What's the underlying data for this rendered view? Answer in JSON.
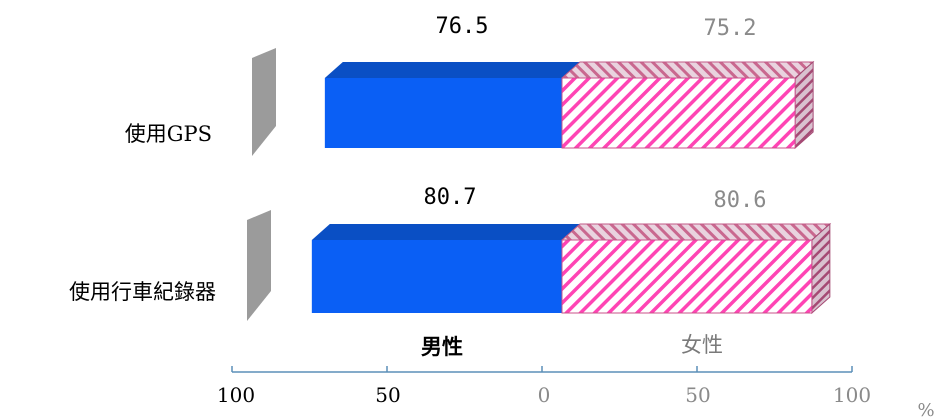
{
  "chart_data": {
    "type": "bar",
    "orientation": "horizontal-diverging",
    "categories": [
      "使用GPS",
      "使用行車紀錄器"
    ],
    "series": [
      {
        "name": "男性",
        "values": [
          76.5,
          80.7
        ],
        "color": "#0a5ff5"
      },
      {
        "name": "女性",
        "values": [
          75.2,
          80.6
        ],
        "color": "#ff44b4"
      }
    ],
    "value_labels": {
      "male": [
        "76.5",
        "80.7"
      ],
      "female": [
        "75.2",
        "80.6"
      ]
    },
    "xaxis": {
      "ticks": [
        "100",
        "50",
        "0",
        "50",
        "100"
      ],
      "unit": "%",
      "range": [
        -100,
        100
      ]
    },
    "legend": [
      "男性",
      "女性"
    ]
  }
}
